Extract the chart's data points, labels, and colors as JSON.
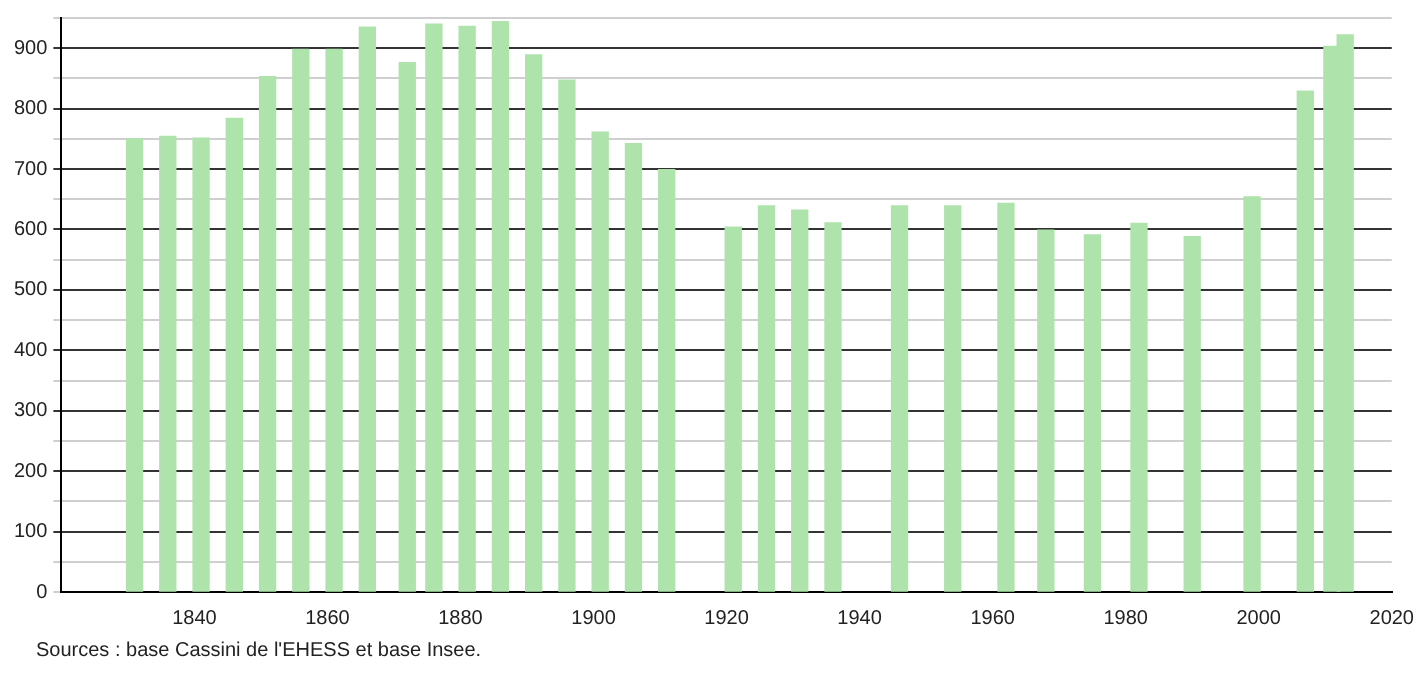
{
  "chart_data": {
    "type": "bar",
    "x": [
      1831,
      1836,
      1841,
      1846,
      1851,
      1856,
      1861,
      1866,
      1872,
      1876,
      1881,
      1886,
      1891,
      1896,
      1901,
      1906,
      1911,
      1921,
      1926,
      1931,
      1936,
      1946,
      1954,
      1962,
      1968,
      1975,
      1982,
      1990,
      1999,
      2007,
      2011,
      2013
    ],
    "values": [
      750,
      754,
      751,
      784,
      853,
      898,
      898,
      935,
      876,
      940,
      936,
      944,
      889,
      847,
      761,
      742,
      699,
      604,
      639,
      632,
      611,
      639,
      639,
      643,
      599,
      591,
      610,
      588,
      654,
      829,
      903,
      922
    ],
    "color": "#aee3ab",
    "xlim": [
      1820,
      2020
    ],
    "xticks": [
      1840,
      1860,
      1880,
      1900,
      1920,
      1940,
      1960,
      1980,
      2000,
      2020
    ],
    "ylim": [
      0,
      950
    ],
    "yticks": [
      0,
      {
        "value": 50,
        "label": null
      },
      100,
      {
        "value": 150,
        "label": null
      },
      200,
      {
        "value": 250,
        "label": null
      },
      300,
      {
        "value": 350,
        "label": null
      },
      400,
      {
        "value": 450,
        "label": null
      },
      500,
      {
        "value": 550,
        "label": null
      },
      600,
      {
        "value": 650,
        "label": null
      },
      700,
      {
        "value": 750,
        "label": null
      },
      800,
      {
        "value": 850,
        "label": null
      },
      900,
      {
        "value": 950,
        "label": null
      }
    ],
    "grid": "y",
    "legend": false,
    "annotations": [
      "Sources : base Cassini de l'EHESS et base Insee."
    ]
  }
}
